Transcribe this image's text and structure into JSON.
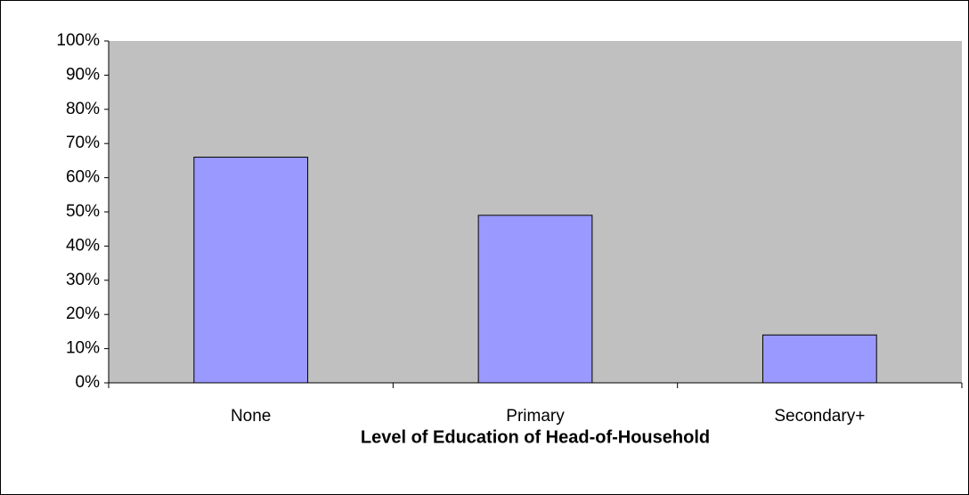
{
  "chart_data": {
    "type": "bar",
    "xlabel": "Level of Education of Head-of-Household",
    "categories": [
      "None",
      "Primary",
      "Secondary+"
    ],
    "values": [
      66,
      49,
      14
    ],
    "color": "#9999ff",
    "ylim": [
      0,
      100
    ],
    "yticks": [
      {
        "value": 0,
        "label": "0%"
      },
      {
        "value": 10,
        "label": "10%"
      },
      {
        "value": 20,
        "label": "20%"
      },
      {
        "value": 30,
        "label": "30%"
      },
      {
        "value": 40,
        "label": "40%"
      },
      {
        "value": 50,
        "label": "50%"
      },
      {
        "value": 60,
        "label": "60%"
      },
      {
        "value": 70,
        "label": "70%"
      },
      {
        "value": 80,
        "label": "80%"
      },
      {
        "value": 90,
        "label": "90%"
      },
      {
        "value": 100,
        "label": "100%"
      }
    ],
    "grid": false
  }
}
